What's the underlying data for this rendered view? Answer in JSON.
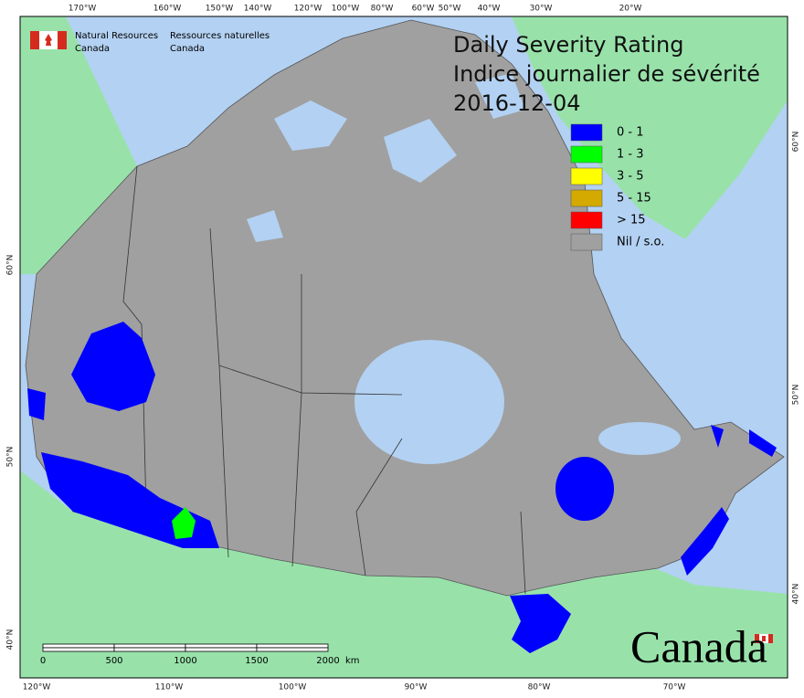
{
  "header": {
    "agency_en": [
      "Natural Resources",
      "Canada"
    ],
    "agency_fr": [
      "Ressources naturelles",
      "Canada"
    ]
  },
  "title": {
    "line1": "Daily Severity Rating",
    "line2": "Indice journalier de sévérité",
    "date": "2016-12-04"
  },
  "legend": [
    {
      "label": "0 - 1",
      "color": "#0000ff"
    },
    {
      "label": "1 - 3",
      "color": "#00ff00"
    },
    {
      "label": "3 - 5",
      "color": "#ffff00"
    },
    {
      "label": "5 - 15",
      "color": "#d4aa00"
    },
    {
      "label": "> 15",
      "color": "#ff0000"
    },
    {
      "label": "Nil / s.o.",
      "color": "#a0a0a0"
    }
  ],
  "graticule": {
    "top": [
      "170°W",
      "160°W",
      "150°W",
      "140°W",
      "120°W",
      "100°W",
      "80°W",
      "60°W",
      "50°W",
      "40°W",
      "30°W",
      "20°W"
    ],
    "bottom": [
      "120°W",
      "110°W",
      "100°W",
      "90°W",
      "80°W",
      "70°W"
    ],
    "left": [
      "60°N",
      "50°N",
      "40°N"
    ],
    "right": [
      "60°N",
      "50°N",
      "40°N"
    ]
  },
  "scale_bar": {
    "labels": [
      "0",
      "500",
      "1000",
      "1500",
      "2000"
    ],
    "unit": "km"
  },
  "wordmark": "Canada"
}
